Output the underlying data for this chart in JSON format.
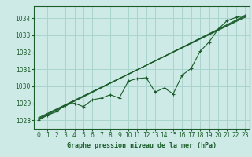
{
  "bg_color": "#ceeae6",
  "grid_color": "#a8d5ce",
  "line_color": "#1a5c2a",
  "text_color": "#1a5c2a",
  "xlabel": "Graphe pression niveau de la mer (hPa)",
  "xlim": [
    -0.5,
    23.5
  ],
  "ylim": [
    1027.5,
    1034.7
  ],
  "yticks": [
    1028,
    1029,
    1030,
    1031,
    1032,
    1033,
    1034
  ],
  "xticks": [
    0,
    1,
    2,
    3,
    4,
    5,
    6,
    7,
    8,
    9,
    10,
    11,
    12,
    13,
    14,
    15,
    16,
    17,
    18,
    19,
    20,
    21,
    22,
    23
  ],
  "data_series": [
    1028.0,
    1028.3,
    1028.5,
    1028.9,
    1029.0,
    1028.8,
    1029.2,
    1029.3,
    1029.5,
    1029.3,
    1030.3,
    1030.45,
    1030.5,
    1029.65,
    1029.9,
    1029.55,
    1030.65,
    1031.05,
    1032.05,
    1032.6,
    1033.35,
    1033.85,
    1034.05,
    1034.15
  ],
  "straight_line1": [
    1028.05,
    1034.15
  ],
  "straight_line1_x": [
    0,
    23
  ],
  "straight_line2": [
    1028.1,
    1034.1
  ],
  "straight_line2_x": [
    0,
    23
  ],
  "straight_line3": [
    1028.15,
    1034.05
  ],
  "straight_line3_x": [
    0,
    23
  ]
}
